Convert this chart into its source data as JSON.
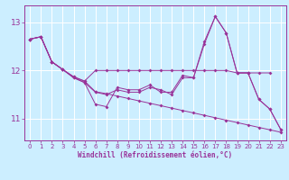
{
  "xlabel": "Windchill (Refroidissement éolien,°C)",
  "x": [
    0,
    1,
    2,
    3,
    4,
    5,
    6,
    7,
    8,
    9,
    10,
    11,
    12,
    13,
    14,
    15,
    16,
    17,
    18,
    19,
    20,
    21,
    22,
    23
  ],
  "series_decline": [
    12.65,
    12.7,
    12.18,
    12.02,
    11.87,
    11.78,
    11.56,
    11.52,
    11.47,
    11.42,
    11.37,
    11.32,
    11.27,
    11.22,
    11.17,
    11.12,
    11.07,
    11.02,
    10.97,
    10.92,
    10.87,
    10.82,
    10.77,
    10.72
  ],
  "series_flat": [
    12.65,
    12.7,
    12.18,
    12.02,
    11.87,
    11.78,
    12.0,
    12.0,
    12.0,
    12.0,
    12.0,
    12.0,
    12.0,
    12.0,
    12.0,
    12.0,
    12.0,
    12.0,
    12.0,
    11.95,
    11.95,
    11.95,
    11.95,
    null
  ],
  "series_spike1": [
    12.65,
    12.7,
    12.18,
    12.02,
    11.85,
    11.75,
    11.3,
    11.25,
    11.65,
    11.6,
    11.6,
    11.7,
    11.55,
    11.55,
    11.9,
    11.85,
    12.55,
    13.12,
    12.78,
    11.95,
    11.95,
    11.4,
    11.2,
    10.78
  ],
  "series_spike2": [
    12.65,
    12.7,
    12.18,
    12.02,
    11.85,
    11.75,
    11.55,
    11.5,
    11.6,
    11.55,
    11.55,
    11.65,
    11.6,
    11.5,
    11.85,
    11.85,
    12.6,
    13.12,
    12.78,
    11.95,
    11.95,
    11.4,
    11.2,
    10.78
  ],
  "line_color": "#993399",
  "bg_color": "#cceeff",
  "grid_color": "#ffffff",
  "ylim": [
    10.55,
    13.35
  ],
  "yticks": [
    11,
    12,
    13
  ],
  "xticks": [
    0,
    1,
    2,
    3,
    4,
    5,
    6,
    7,
    8,
    9,
    10,
    11,
    12,
    13,
    14,
    15,
    16,
    17,
    18,
    19,
    20,
    21,
    22,
    23
  ],
  "tick_fontsize": 5.0,
  "xlabel_fontsize": 5.5
}
